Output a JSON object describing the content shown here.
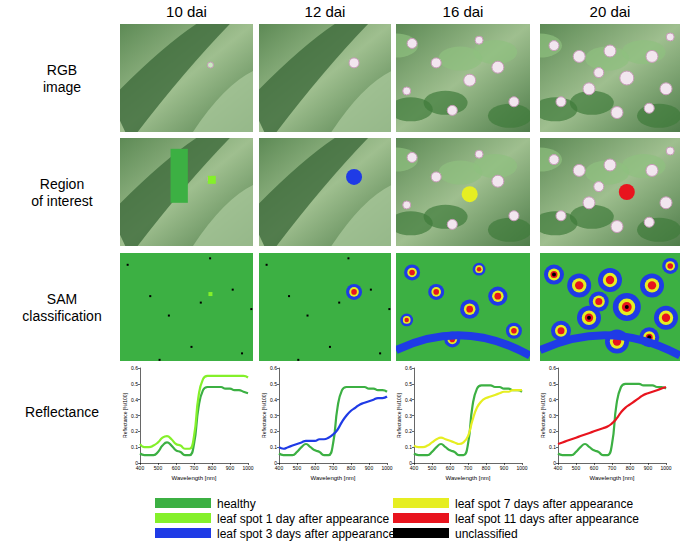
{
  "columns": [
    "10 dai",
    "12 dai",
    "16 dai",
    "20 dai"
  ],
  "rows": [
    [
      "RGB",
      "image"
    ],
    [
      "Region",
      "of interest"
    ],
    [
      "SAM",
      "classification"
    ],
    [
      "Reflectance"
    ]
  ],
  "key": [
    {
      "label": "healthy",
      "color": "#3cb043"
    },
    {
      "label": "leaf spot 1 day after appearance",
      "color": "#84f02a"
    },
    {
      "label": "leaf spot 3 days after appearance",
      "color": "#1f3be6"
    },
    {
      "label": "leaf spot 7 days after appearance",
      "color": "#e6ee22"
    },
    {
      "label": "leaf spot 11 days after appearance",
      "color": "#e8141e"
    },
    {
      "label": "unclassified",
      "color": "#000000"
    }
  ],
  "chart_data": [
    {
      "type": "line",
      "x_label": "Wavelength [nm]",
      "y_label": "Reflectance [%/100]",
      "x": [
        400,
        425,
        450,
        475,
        500,
        525,
        550,
        575,
        600,
        625,
        650,
        675,
        700,
        725,
        750,
        775,
        800,
        825,
        850,
        875,
        900,
        925,
        950,
        975,
        1000
      ],
      "xlim": [
        400,
        1000
      ],
      "xticks": [
        400,
        500,
        600,
        700,
        800,
        900,
        1000
      ],
      "ylim": [
        0,
        0.6
      ],
      "yticks": [
        0,
        0.1,
        0.2,
        0.3,
        0.4,
        0.5,
        0.6
      ],
      "series": [
        {
          "name": "healthy",
          "color": "#3cb043",
          "values": [
            0.06,
            0.05,
            0.05,
            0.05,
            0.07,
            0.11,
            0.13,
            0.11,
            0.08,
            0.07,
            0.05,
            0.05,
            0.12,
            0.35,
            0.46,
            0.48,
            0.48,
            0.48,
            0.48,
            0.47,
            0.47,
            0.46,
            0.46,
            0.45,
            0.44
          ]
        },
        {
          "name": "leaf spot 1 day after appearance",
          "color": "#84f02a",
          "values": [
            0.12,
            0.1,
            0.1,
            0.11,
            0.13,
            0.16,
            0.17,
            0.15,
            0.12,
            0.11,
            0.09,
            0.09,
            0.17,
            0.42,
            0.53,
            0.55,
            0.55,
            0.55,
            0.55,
            0.55,
            0.55,
            0.55,
            0.55,
            0.55,
            0.54
          ]
        }
      ]
    },
    {
      "type": "line",
      "x_label": "Wavelength [nm]",
      "y_label": "Reflectance [%/100]",
      "x": [
        400,
        425,
        450,
        475,
        500,
        525,
        550,
        575,
        600,
        625,
        650,
        675,
        700,
        725,
        750,
        775,
        800,
        825,
        850,
        875,
        900,
        925,
        950,
        975,
        1000
      ],
      "xlim": [
        400,
        1000
      ],
      "xticks": [
        400,
        500,
        600,
        700,
        800,
        900,
        1000
      ],
      "ylim": [
        0,
        0.6
      ],
      "yticks": [
        0,
        0.1,
        0.2,
        0.3,
        0.4,
        0.5,
        0.6
      ],
      "series": [
        {
          "name": "healthy",
          "color": "#3cb043",
          "values": [
            0.06,
            0.05,
            0.05,
            0.05,
            0.07,
            0.1,
            0.12,
            0.1,
            0.08,
            0.07,
            0.05,
            0.05,
            0.12,
            0.35,
            0.46,
            0.48,
            0.48,
            0.48,
            0.48,
            0.48,
            0.47,
            0.47,
            0.46,
            0.46,
            0.45
          ]
        },
        {
          "name": "leaf spot 3 days after appearance",
          "color": "#1f3be6",
          "values": [
            0.1,
            0.09,
            0.1,
            0.11,
            0.12,
            0.13,
            0.14,
            0.14,
            0.14,
            0.15,
            0.15,
            0.16,
            0.18,
            0.21,
            0.26,
            0.3,
            0.33,
            0.35,
            0.37,
            0.38,
            0.39,
            0.4,
            0.41,
            0.41,
            0.42
          ]
        }
      ]
    },
    {
      "type": "line",
      "x_label": "Wavelength [nm]",
      "y_label": "Reflectance [%/100]",
      "x": [
        400,
        425,
        450,
        475,
        500,
        525,
        550,
        575,
        600,
        625,
        650,
        675,
        700,
        725,
        750,
        775,
        800,
        825,
        850,
        875,
        900,
        925,
        950,
        975,
        1000
      ],
      "xlim": [
        400,
        1000
      ],
      "xticks": [
        400,
        500,
        600,
        700,
        800,
        900,
        1000
      ],
      "ylim": [
        0,
        0.6
      ],
      "yticks": [
        0,
        0.1,
        0.2,
        0.3,
        0.4,
        0.5,
        0.6
      ],
      "series": [
        {
          "name": "healthy",
          "color": "#3cb043",
          "values": [
            0.06,
            0.05,
            0.05,
            0.05,
            0.07,
            0.1,
            0.12,
            0.1,
            0.08,
            0.07,
            0.05,
            0.05,
            0.12,
            0.36,
            0.47,
            0.49,
            0.49,
            0.49,
            0.48,
            0.48,
            0.47,
            0.47,
            0.46,
            0.46,
            0.45
          ]
        },
        {
          "name": "leaf spot 7 days after appearance",
          "color": "#e6ee22",
          "values": [
            0.11,
            0.1,
            0.1,
            0.11,
            0.13,
            0.15,
            0.16,
            0.15,
            0.14,
            0.13,
            0.12,
            0.13,
            0.17,
            0.27,
            0.35,
            0.39,
            0.41,
            0.42,
            0.43,
            0.44,
            0.45,
            0.45,
            0.46,
            0.46,
            0.46
          ]
        }
      ]
    },
    {
      "type": "line",
      "x_label": "Wavelength [nm]",
      "y_label": "Reflectance [%/100]",
      "x": [
        400,
        425,
        450,
        475,
        500,
        525,
        550,
        575,
        600,
        625,
        650,
        675,
        700,
        725,
        750,
        775,
        800,
        825,
        850,
        875,
        900,
        925,
        950,
        975,
        1000
      ],
      "xlim": [
        400,
        1000
      ],
      "xticks": [
        400,
        500,
        600,
        700,
        800,
        900,
        1000
      ],
      "ylim": [
        0,
        0.6
      ],
      "yticks": [
        0,
        0.1,
        0.2,
        0.3,
        0.4,
        0.5,
        0.6
      ],
      "series": [
        {
          "name": "healthy",
          "color": "#3cb043",
          "values": [
            0.06,
            0.05,
            0.05,
            0.05,
            0.07,
            0.1,
            0.12,
            0.1,
            0.08,
            0.07,
            0.05,
            0.05,
            0.12,
            0.37,
            0.48,
            0.5,
            0.5,
            0.5,
            0.5,
            0.49,
            0.49,
            0.49,
            0.48,
            0.48,
            0.47
          ]
        },
        {
          "name": "leaf spot 11 days after appearance",
          "color": "#e8141e",
          "values": [
            0.12,
            0.13,
            0.14,
            0.15,
            0.16,
            0.17,
            0.18,
            0.19,
            0.2,
            0.21,
            0.22,
            0.23,
            0.25,
            0.28,
            0.32,
            0.35,
            0.37,
            0.39,
            0.41,
            0.43,
            0.44,
            0.45,
            0.46,
            0.47,
            0.48
          ]
        }
      ]
    }
  ]
}
